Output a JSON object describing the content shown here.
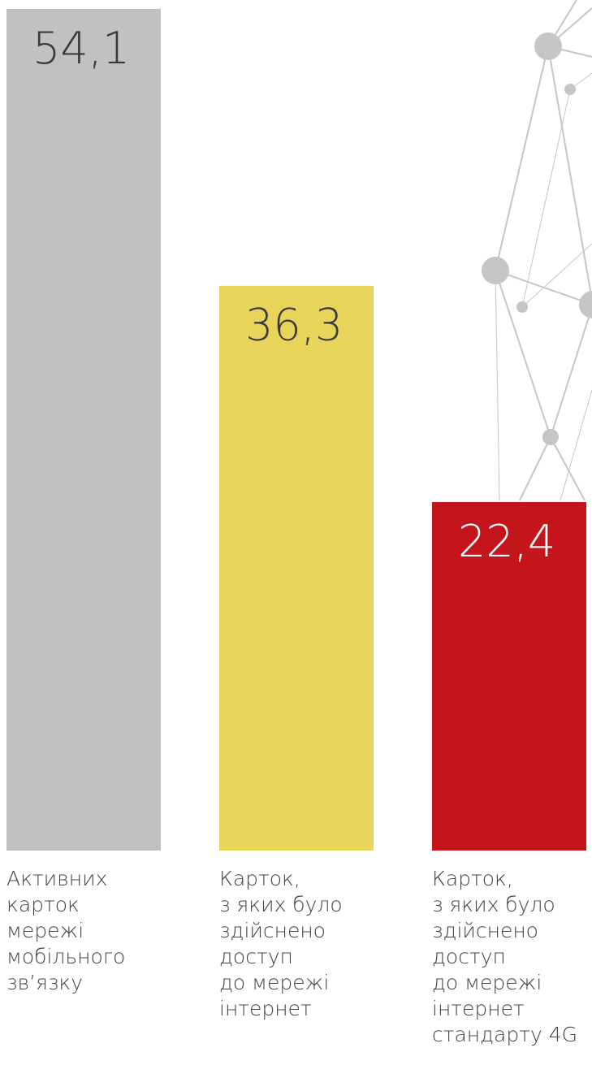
{
  "chart_data": {
    "type": "bar",
    "categories": [
      "Активних\nкарток\nмережі\nмобільного\nзв’язку",
      "Карток,\nз яких було\nздійснено\nдоступ\nдо мережі\nінтернет",
      "Карток,\nз яких було\nздійснено\nдоступ\nдо мережі\nінтернет\nстандарту 4G"
    ],
    "values": [
      54.1,
      36.3,
      22.4
    ],
    "value_labels": [
      "54,1",
      "36,3",
      "22,4"
    ],
    "colors": [
      "#bfc1c3",
      "#e8d45a",
      "#c4141c"
    ],
    "value_label_colors": [
      "#3a3a3a",
      "#3a3a3a",
      "#ffffff"
    ]
  }
}
